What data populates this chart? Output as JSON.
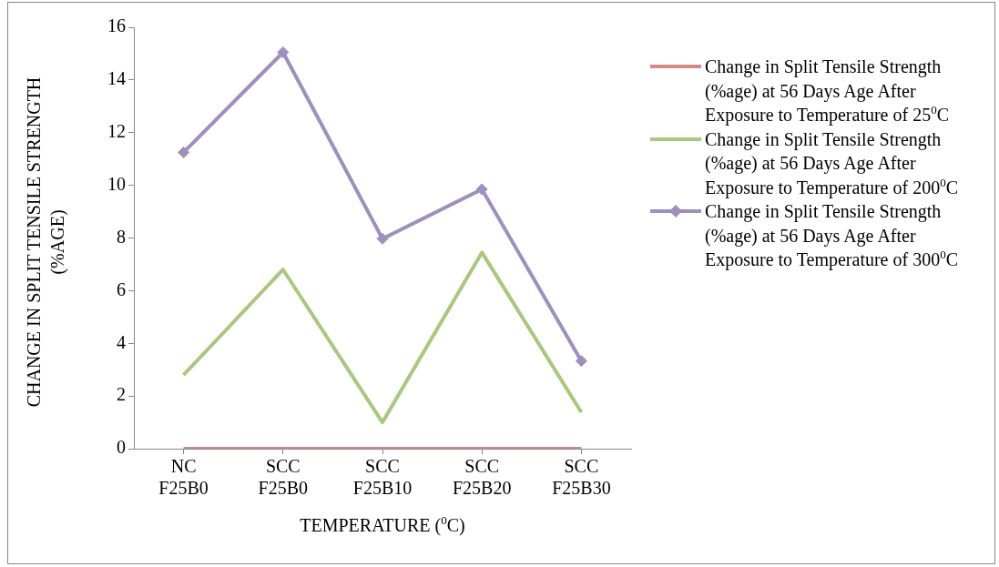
{
  "chart_data": {
    "type": "line",
    "xlabel": "TEMPERATURE  ($^{0}$C)",
    "ylabel": "CHANGE IN SPLIT TENSILE STRENGTH (%AGE)",
    "categories": [
      "NC F25B0",
      "SCC F25B0",
      "SCC F25B10",
      "SCC F25B20",
      "SCC F25B30"
    ],
    "series": [
      {
        "name": "Change in Split Tensile Strength (%age) at 56 Days Age After Exposure to Temperature of 25$^{0}$C",
        "color": "#d08a87",
        "marker": "none",
        "values": [
          0,
          0,
          0,
          0,
          0
        ]
      },
      {
        "name": "Change in Split Tensile Strength (%age) at 56 Days Age After Exposure to Temperature of 200$^{0}$C",
        "color": "#a9c77e",
        "marker": "none",
        "values": [
          2.8,
          6.8,
          1.0,
          7.45,
          1.38
        ]
      },
      {
        "name": "Change in Split Tensile Strength (%age) at 56 Days Age After Exposure to Temperature of 300$^{0}$C",
        "color": "#9e8fbd",
        "marker": "diamond",
        "values": [
          11.25,
          15.05,
          7.97,
          9.85,
          3.33
        ]
      }
    ],
    "ylim": [
      0,
      16
    ],
    "yticks": [
      0,
      2,
      4,
      6,
      8,
      10,
      12,
      14,
      16
    ],
    "grid": false,
    "legend": "right"
  }
}
